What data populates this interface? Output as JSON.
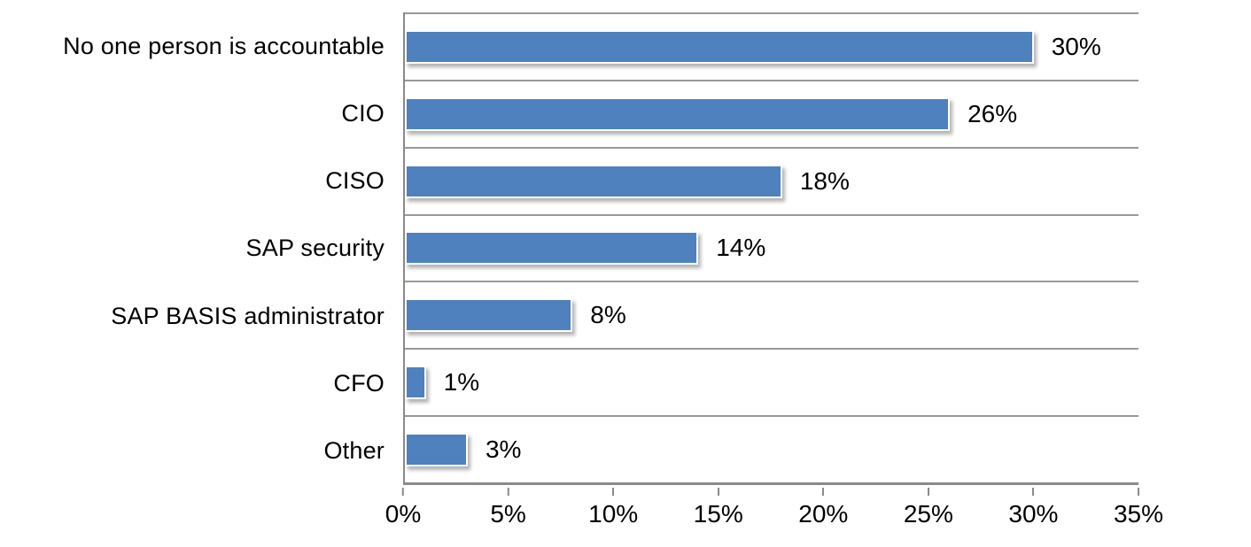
{
  "chart_data": {
    "type": "bar",
    "orientation": "horizontal",
    "title": "",
    "categories": [
      "No one person is accountable",
      "CIO",
      "CISO",
      "SAP security",
      "SAP BASIS administrator",
      "CFO",
      "Other"
    ],
    "values": [
      30,
      26,
      18,
      14,
      8,
      1,
      3
    ],
    "value_labels": [
      "30%",
      "26%",
      "18%",
      "14%",
      "8%",
      "1%",
      "3%"
    ],
    "x_axis": {
      "min": 0,
      "max": 35,
      "step": 5,
      "ticks": [
        "0%",
        "5%",
        "10%",
        "15%",
        "20%",
        "25%",
        "30%",
        "35%"
      ]
    },
    "grid": true,
    "legend": false,
    "colors": {
      "bar": "#4e81bd",
      "gridline": "#999999",
      "axis": "#8a8a8a",
      "text": "#000000",
      "background": "#ffffff"
    }
  }
}
